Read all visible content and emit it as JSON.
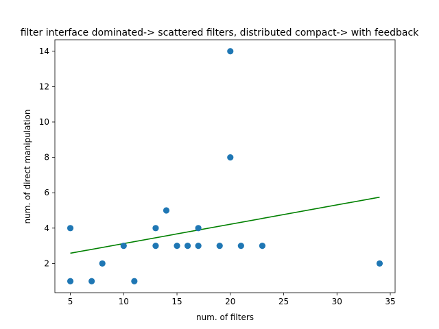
{
  "chart_data": {
    "type": "scatter",
    "title": "filter interface dominated-> scattered filters, distributed compact-> with feedback",
    "xlabel": "num. of filters",
    "ylabel": "num. of direct manipulation",
    "xlim": [
      3.55,
      35.45
    ],
    "ylim": [
      0.35,
      14.65
    ],
    "xticks": [
      5,
      10,
      15,
      20,
      25,
      30,
      35
    ],
    "yticks": [
      2,
      4,
      6,
      8,
      10,
      12,
      14
    ],
    "xtick_labels": [
      "5",
      "10",
      "15",
      "20",
      "25",
      "30",
      "35"
    ],
    "ytick_labels": [
      "2",
      "4",
      "6",
      "8",
      "10",
      "12",
      "14"
    ],
    "grid": false,
    "legend": "none",
    "series": [
      {
        "kind": "scatter",
        "color": "#1f77b4",
        "points": [
          {
            "x": 5,
            "y": 4
          },
          {
            "x": 5,
            "y": 1
          },
          {
            "x": 7,
            "y": 1
          },
          {
            "x": 8,
            "y": 2
          },
          {
            "x": 10,
            "y": 3
          },
          {
            "x": 11,
            "y": 1
          },
          {
            "x": 13,
            "y": 4
          },
          {
            "x": 13,
            "y": 3
          },
          {
            "x": 14,
            "y": 5
          },
          {
            "x": 15,
            "y": 3
          },
          {
            "x": 16,
            "y": 3
          },
          {
            "x": 17,
            "y": 4
          },
          {
            "x": 17,
            "y": 3
          },
          {
            "x": 19,
            "y": 3
          },
          {
            "x": 20,
            "y": 14
          },
          {
            "x": 20,
            "y": 8
          },
          {
            "x": 21,
            "y": 3
          },
          {
            "x": 23,
            "y": 3
          },
          {
            "x": 34,
            "y": 2
          }
        ]
      },
      {
        "kind": "trend-line",
        "color": "#008000",
        "points": [
          {
            "x": 5,
            "y": 2.58
          },
          {
            "x": 34,
            "y": 5.75
          }
        ]
      }
    ]
  }
}
